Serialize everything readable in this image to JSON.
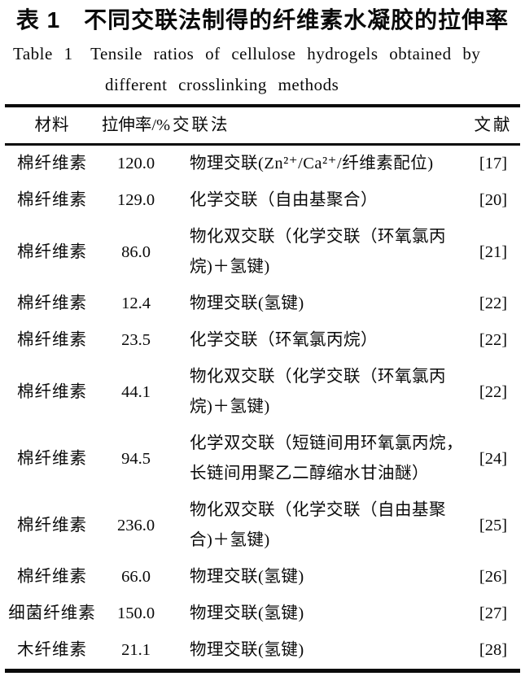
{
  "title_cn": "表 1　不同交联法制得的纤维素水凝胶的拉伸率",
  "caption_en": {
    "line1": "Table 1　Tensile ratios of cellulose hydrogels obtained by",
    "line2": "different crosslinking methods"
  },
  "table": {
    "columns": [
      "材料",
      "拉伸率/%",
      "交联法",
      "文献"
    ],
    "rows": [
      {
        "material": "棉纤维素",
        "ratio": "120.0",
        "method": "物理交联(Zn²⁺/Ca²⁺/纤维素配位)",
        "ref": "[17]"
      },
      {
        "material": "棉纤维素",
        "ratio": "129.0",
        "method": "化学交联（自由基聚合）",
        "ref": "[20]"
      },
      {
        "material": "棉纤维素",
        "ratio": "86.0",
        "method": "物化双交联（化学交联（环氧氯丙\n烷)＋氢键)",
        "ref": "[21]"
      },
      {
        "material": "棉纤维素",
        "ratio": "12.4",
        "method": "物理交联(氢键)",
        "ref": "[22]"
      },
      {
        "material": "棉纤维素",
        "ratio": "23.5",
        "method": "化学交联（环氧氯丙烷）",
        "ref": "[22]"
      },
      {
        "material": "棉纤维素",
        "ratio": "44.1",
        "method": "物化双交联（化学交联（环氧氯丙\n烷)＋氢键)",
        "ref": "[22]"
      },
      {
        "material": "棉纤维素",
        "ratio": "94.5",
        "method": "化学双交联（短链间用环氧氯丙烷，\n长链间用聚乙二醇缩水甘油醚）",
        "ref": "[24]"
      },
      {
        "material": "棉纤维素",
        "ratio": "236.0",
        "method": "物化双交联（化学交联（自由基聚\n合)＋氢键)",
        "ref": "[25]"
      },
      {
        "material": "棉纤维素",
        "ratio": "66.0",
        "method": "物理交联(氢键)",
        "ref": "[26]"
      },
      {
        "material": "细菌纤维素",
        "ratio": "150.0",
        "method": "物理交联(氢键)",
        "ref": "[27]"
      },
      {
        "material": "木纤维素",
        "ratio": "21.1",
        "method": "物理交联(氢键)",
        "ref": "[28]"
      }
    ]
  },
  "colors": {
    "text": "#0a0a0a",
    "background": "#ffffff",
    "rule": "#0a0a0a"
  }
}
